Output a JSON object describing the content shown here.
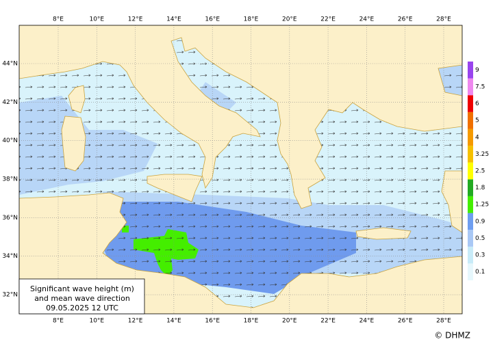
{
  "map": {
    "lon_ticks": [
      {
        "value": 8,
        "label": "8°E"
      },
      {
        "value": 10,
        "label": "10°E"
      },
      {
        "value": 12,
        "label": "12°E"
      },
      {
        "value": 14,
        "label": "14°E"
      },
      {
        "value": 16,
        "label": "16°E"
      },
      {
        "value": 18,
        "label": "18°E"
      },
      {
        "value": 20,
        "label": "20°E"
      },
      {
        "value": 22,
        "label": "22°E"
      },
      {
        "value": 24,
        "label": "24°E"
      },
      {
        "value": 26,
        "label": "26°E"
      },
      {
        "value": 28,
        "label": "28°E"
      }
    ],
    "lat_ticks": [
      {
        "value": 32,
        "label": "32°N"
      },
      {
        "value": 34,
        "label": "34°N"
      },
      {
        "value": 36,
        "label": "36°N"
      },
      {
        "value": 38,
        "label": "38°N"
      },
      {
        "value": 40,
        "label": "40°N"
      },
      {
        "value": 42,
        "label": "42°N"
      },
      {
        "value": 44,
        "label": "44°N"
      }
    ],
    "colorbar": {
      "levels": [
        0.1,
        0.3,
        0.5,
        0.9,
        1.25,
        1.8,
        2.5,
        3.25,
        4,
        5,
        6,
        7.5,
        9
      ],
      "colors": [
        "#e6f7fc",
        "#c8ebf8",
        "#a9c8f5",
        "#6e9ef0",
        "#44ee00",
        "#22aa22",
        "#ffff00",
        "#f5c000",
        "#f59a00",
        "#f07000",
        "#ee0000",
        "#ee88ee",
        "#9944ee"
      ]
    },
    "legend": [
      "Significant wave height (m)",
      "and mean wave direction",
      "09.05.2025 12  UTC"
    ],
    "credit": "© DHMZ"
  }
}
